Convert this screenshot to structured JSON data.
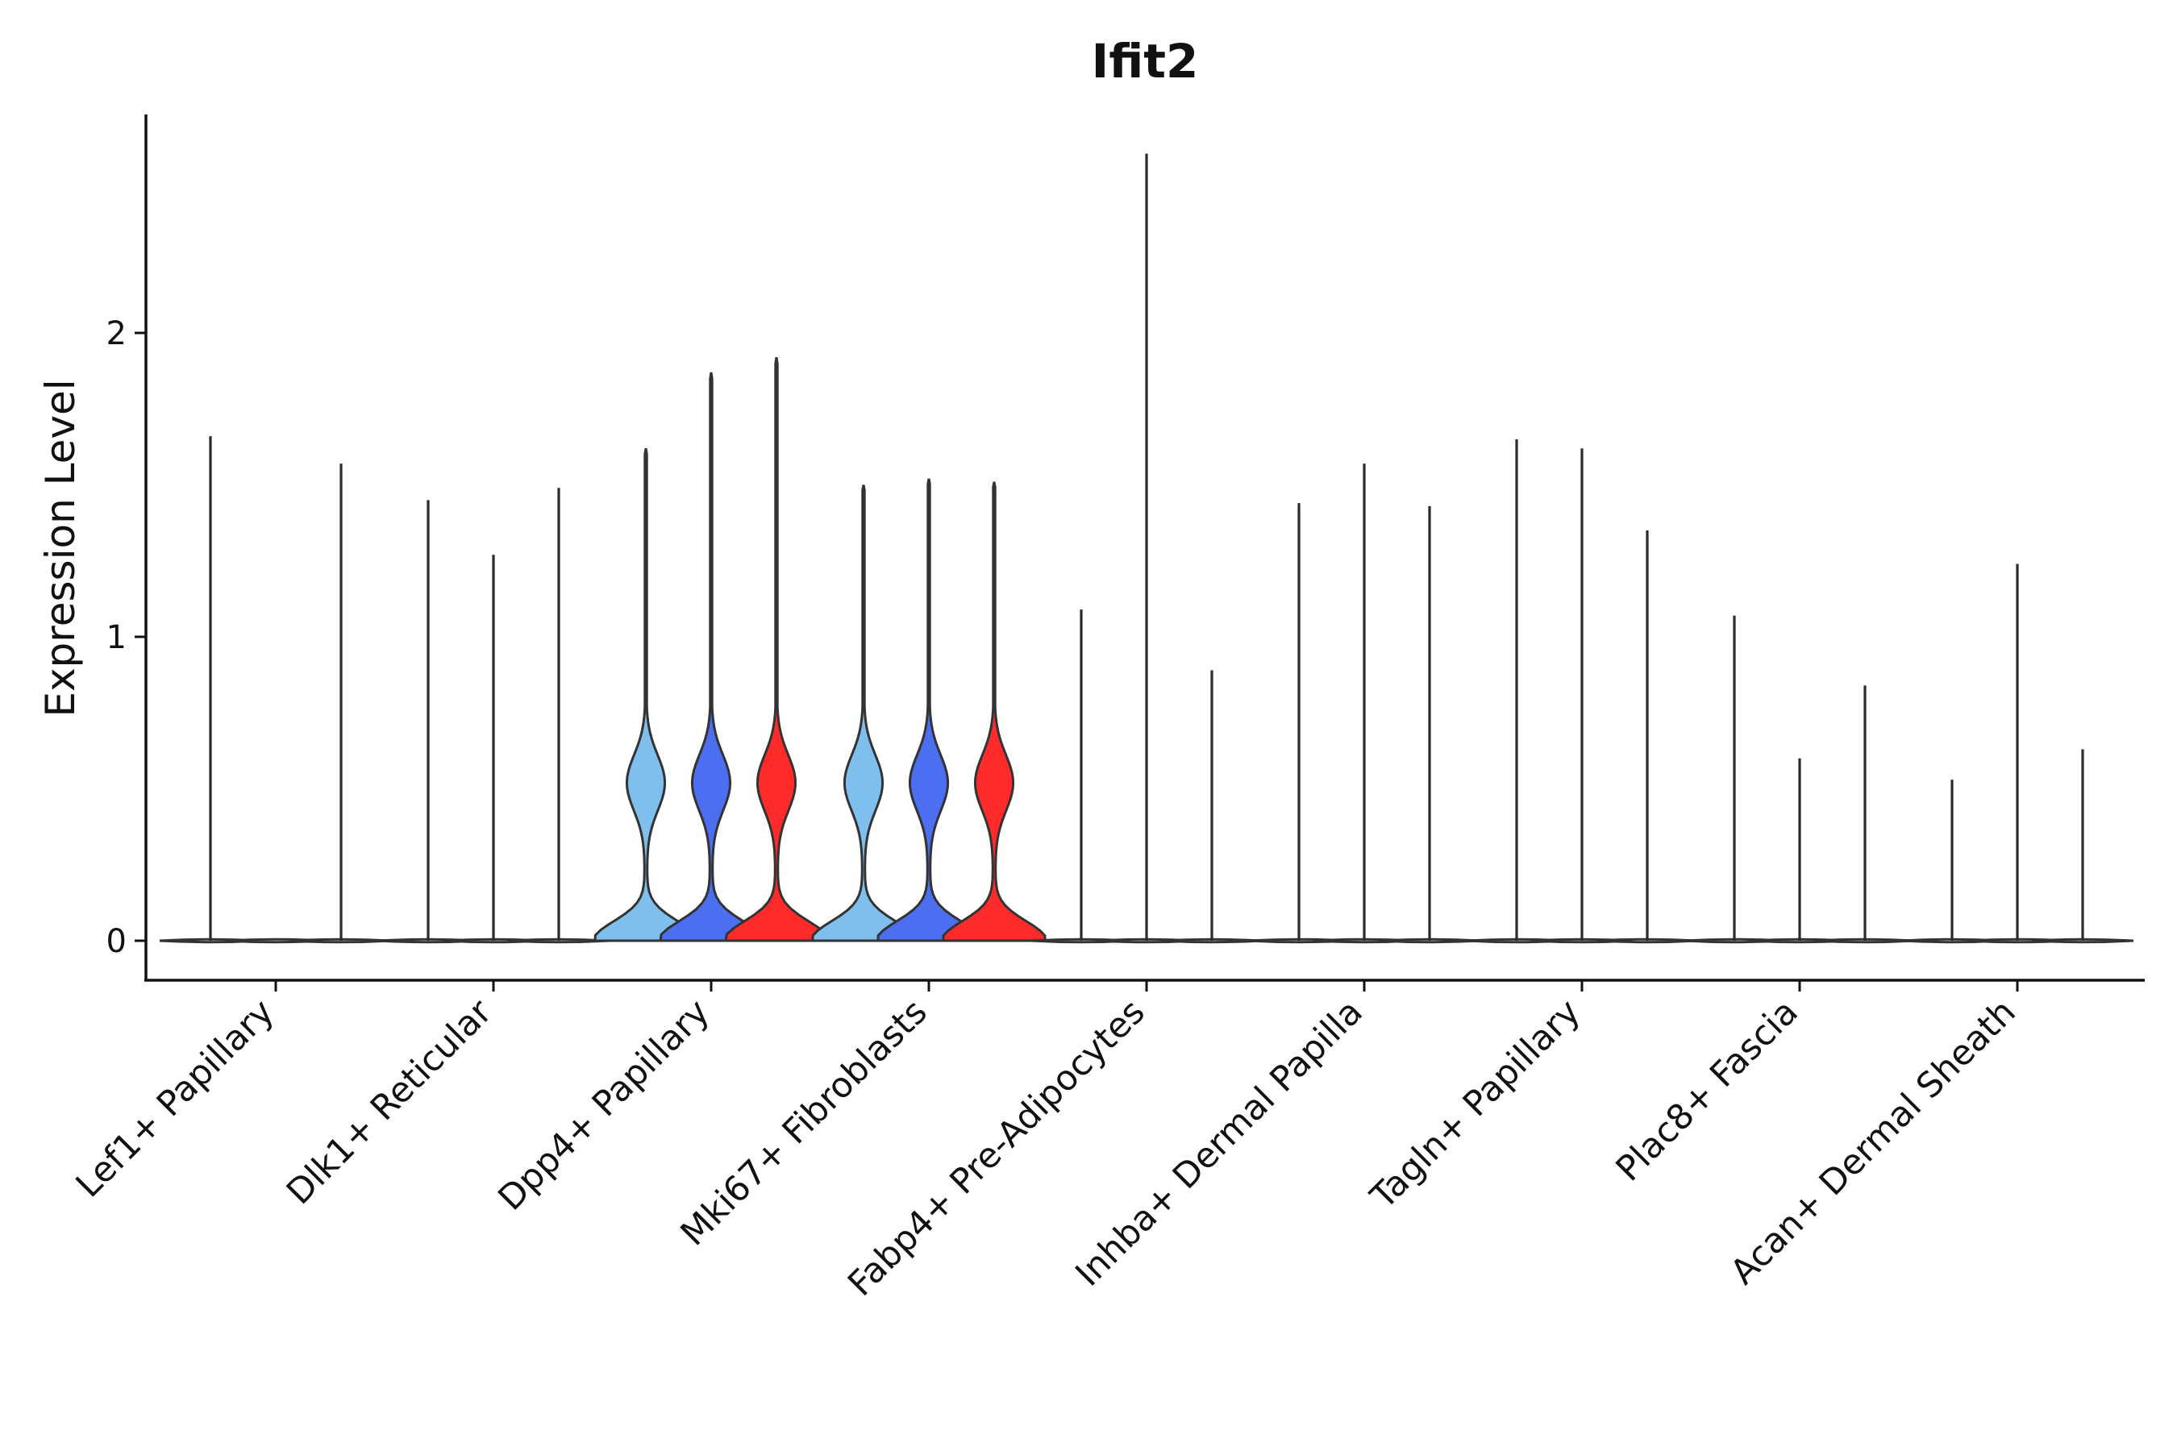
{
  "chart_data": {
    "type": "violin",
    "title": "Ifit2",
    "xlabel": "",
    "ylabel": "Expression Level",
    "ylim": [
      -0.13,
      2.72
    ],
    "yticks": [
      0,
      1,
      2
    ],
    "colors": {
      "light": "#7fbfed",
      "mid": "#4b6ff0",
      "red": "#ff2b2b",
      "none": "#ffffff"
    },
    "categories": [
      "Lef1+ Papillary",
      "Dlk1+ Reticular",
      "Dpp4+ Papillary",
      "Mki67+ Fibroblasts",
      "Fabp4+ Pre-Adipocytes",
      "Inhba+ Dermal Papilla",
      "Tagln+ Papillary",
      "Plac8+ Fascia",
      "Acan+ Dermal Sheath"
    ],
    "groups": [
      {
        "category": "Lef1+ Papillary",
        "violins": [
          {
            "max": 1.66,
            "shape": "flat",
            "color": "none"
          },
          {
            "max": 0.0,
            "shape": "flat",
            "color": "none"
          },
          {
            "max": 1.57,
            "shape": "flat",
            "color": "none"
          }
        ]
      },
      {
        "category": "Dlk1+ Reticular",
        "violins": [
          {
            "max": 1.45,
            "shape": "flat",
            "color": "none"
          },
          {
            "max": 1.27,
            "shape": "flat",
            "color": "none"
          },
          {
            "max": 1.49,
            "shape": "flat",
            "color": "none"
          }
        ]
      },
      {
        "category": "Dpp4+ Papillary",
        "violins": [
          {
            "max": 1.62,
            "shape": "full",
            "color": "light"
          },
          {
            "max": 1.87,
            "shape": "full",
            "color": "mid"
          },
          {
            "max": 1.92,
            "shape": "full",
            "color": "red"
          }
        ]
      },
      {
        "category": "Mki67+ Fibroblasts",
        "violins": [
          {
            "max": 1.5,
            "shape": "full",
            "color": "light"
          },
          {
            "max": 1.52,
            "shape": "full",
            "color": "mid"
          },
          {
            "max": 1.51,
            "shape": "full",
            "color": "red"
          }
        ]
      },
      {
        "category": "Fabp4+ Pre-Adipocytes",
        "violins": [
          {
            "max": 1.09,
            "shape": "flat",
            "color": "none"
          },
          {
            "max": 2.59,
            "shape": "flat",
            "color": "none"
          },
          {
            "max": 0.89,
            "shape": "flat",
            "color": "none"
          }
        ]
      },
      {
        "category": "Inhba+ Dermal Papilla",
        "violins": [
          {
            "max": 1.44,
            "shape": "flat",
            "color": "none"
          },
          {
            "max": 1.57,
            "shape": "flat",
            "color": "none"
          },
          {
            "max": 1.43,
            "shape": "flat",
            "color": "none"
          }
        ]
      },
      {
        "category": "Tagln+ Papillary",
        "violins": [
          {
            "max": 1.65,
            "shape": "flat",
            "color": "none"
          },
          {
            "max": 1.62,
            "shape": "flat",
            "color": "none"
          },
          {
            "max": 1.35,
            "shape": "flat",
            "color": "none"
          }
        ]
      },
      {
        "category": "Plac8+ Fascia",
        "violins": [
          {
            "max": 1.07,
            "shape": "flat",
            "color": "none"
          },
          {
            "max": 0.6,
            "shape": "flat",
            "color": "none"
          },
          {
            "max": 0.84,
            "shape": "flat",
            "color": "none"
          }
        ]
      },
      {
        "category": "Acan+ Dermal Sheath",
        "violins": [
          {
            "max": 0.53,
            "shape": "flat",
            "color": "none"
          },
          {
            "max": 1.24,
            "shape": "flat",
            "color": "none"
          },
          {
            "max": 0.63,
            "shape": "flat",
            "color": "none"
          }
        ]
      }
    ]
  }
}
